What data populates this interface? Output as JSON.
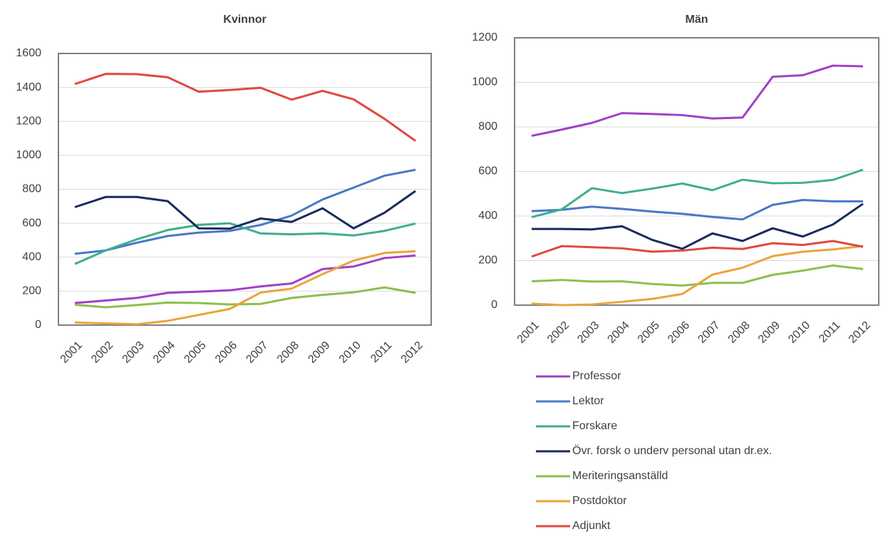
{
  "chart_data": [
    {
      "type": "line",
      "title": "Kvinnor",
      "categories": [
        "2001",
        "2002",
        "2003",
        "2004",
        "2005",
        "2006",
        "2007",
        "2008",
        "2009",
        "2010",
        "2011",
        "2012"
      ],
      "ylim": [
        0,
        1600
      ],
      "yticks": [
        0,
        200,
        400,
        600,
        800,
        1000,
        1200,
        1400,
        1600
      ],
      "grid": true,
      "series": [
        {
          "color": "#a040c8",
          "values": [
            130,
            145,
            160,
            190,
            197,
            205,
            228,
            245,
            330,
            345,
            395,
            410
          ]
        },
        {
          "color": "#4a78c8",
          "values": [
            420,
            440,
            485,
            525,
            545,
            555,
            590,
            645,
            740,
            810,
            880,
            915
          ]
        },
        {
          "color": "#3fae8f",
          "values": [
            360,
            440,
            505,
            560,
            590,
            600,
            540,
            535,
            540,
            528,
            555,
            598
          ]
        },
        {
          "color": "#1b2a5e",
          "values": [
            695,
            755,
            755,
            730,
            570,
            568,
            628,
            608,
            688,
            570,
            662,
            790
          ]
        },
        {
          "color": "#8cc04c",
          "values": [
            120,
            105,
            118,
            133,
            130,
            122,
            125,
            160,
            178,
            193,
            222,
            190
          ]
        },
        {
          "color": "#e8a53a",
          "values": [
            15,
            10,
            5,
            25,
            60,
            95,
            192,
            215,
            300,
            380,
            425,
            435
          ]
        },
        {
          "color": "#e0493f",
          "values": [
            1420,
            1480,
            1478,
            1460,
            1375,
            1385,
            1398,
            1328,
            1380,
            1330,
            1215,
            1085
          ]
        }
      ]
    },
    {
      "type": "line",
      "title": "Män",
      "categories": [
        "2001",
        "2002",
        "2003",
        "2004",
        "2005",
        "2006",
        "2007",
        "2008",
        "2009",
        "2010",
        "2011",
        "2012"
      ],
      "ylim": [
        0,
        1200
      ],
      "yticks": [
        0,
        200,
        400,
        600,
        800,
        1000,
        1200
      ],
      "grid": true,
      "series": [
        {
          "name": "Professor",
          "color": "#a040c8",
          "values": [
            760,
            788,
            818,
            862,
            858,
            853,
            838,
            842,
            1025,
            1032,
            1075,
            1072
          ]
        },
        {
          "name": "Lektor",
          "color": "#4a78c8",
          "values": [
            422,
            428,
            442,
            432,
            420,
            410,
            396,
            385,
            450,
            472,
            466,
            466
          ]
        },
        {
          "name": "Forskare",
          "color": "#3fae8f",
          "values": [
            395,
            430,
            525,
            503,
            523,
            546,
            516,
            563,
            547,
            549,
            562,
            608
          ]
        },
        {
          "name": "Övr. forsk o underv personal utan dr.ex.",
          "color": "#1b2a5e",
          "values": [
            342,
            342,
            340,
            354,
            293,
            253,
            322,
            288,
            345,
            308,
            362,
            455
          ]
        },
        {
          "name": "Meriteringsanställd",
          "color": "#8cc04c",
          "values": [
            107,
            113,
            106,
            107,
            95,
            88,
            100,
            100,
            136,
            155,
            178,
            162
          ]
        },
        {
          "name": "Postdoktor",
          "color": "#e8a53a",
          "values": [
            7,
            0,
            3,
            15,
            28,
            50,
            137,
            168,
            220,
            240,
            250,
            265
          ]
        },
        {
          "name": "Adjunkt",
          "color": "#e0493f",
          "values": [
            218,
            265,
            260,
            255,
            240,
            245,
            258,
            252,
            278,
            270,
            288,
            262
          ]
        }
      ]
    }
  ]
}
